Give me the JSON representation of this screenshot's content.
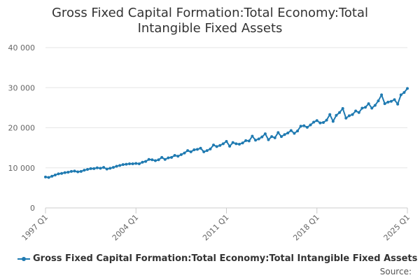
{
  "chart_data": {
    "type": "line",
    "title_lines": [
      "Gross Fixed Capital Formation:Total Economy:Total",
      "Intangible Fixed Assets"
    ],
    "xlabel": "",
    "ylabel": "",
    "ylim": [
      0,
      40000
    ],
    "y_ticks": [
      0,
      10000,
      20000,
      30000,
      40000
    ],
    "y_tick_labels": [
      "0",
      "10 000",
      "20 000",
      "30 000",
      "40 000"
    ],
    "x_tick_labels": [
      "1997 Q1",
      "2004 Q1",
      "2011 Q1",
      "2018 Q1",
      "2025 Q1"
    ],
    "grid": "horizontal",
    "legend_position": "bottom",
    "color": "#1f7ab1",
    "series": [
      {
        "name": "Gross Fixed Capital Formation:Total Economy:Total Intangible Fixed Assets",
        "x": [
          "1997 Q1",
          "1997 Q2",
          "1997 Q3",
          "1997 Q4",
          "1998 Q1",
          "1998 Q2",
          "1998 Q3",
          "1998 Q4",
          "1999 Q1",
          "1999 Q2",
          "1999 Q3",
          "1999 Q4",
          "2000 Q1",
          "2000 Q2",
          "2000 Q3",
          "2000 Q4",
          "2001 Q1",
          "2001 Q2",
          "2001 Q3",
          "2001 Q4",
          "2002 Q1",
          "2002 Q2",
          "2002 Q3",
          "2002 Q4",
          "2003 Q1",
          "2003 Q2",
          "2003 Q3",
          "2003 Q4",
          "2004 Q1",
          "2004 Q2",
          "2004 Q3",
          "2004 Q4",
          "2005 Q1",
          "2005 Q2",
          "2005 Q3",
          "2005 Q4",
          "2006 Q1",
          "2006 Q2",
          "2006 Q3",
          "2006 Q4",
          "2007 Q1",
          "2007 Q2",
          "2007 Q3",
          "2007 Q4",
          "2008 Q1",
          "2008 Q2",
          "2008 Q3",
          "2008 Q4",
          "2009 Q1",
          "2009 Q2",
          "2009 Q3",
          "2009 Q4",
          "2010 Q1",
          "2010 Q2",
          "2010 Q3",
          "2010 Q4",
          "2011 Q1",
          "2011 Q2",
          "2011 Q3",
          "2011 Q4",
          "2012 Q1",
          "2012 Q2",
          "2012 Q3",
          "2012 Q4",
          "2013 Q1",
          "2013 Q2",
          "2013 Q3",
          "2013 Q4",
          "2014 Q1",
          "2014 Q2",
          "2014 Q3",
          "2014 Q4",
          "2015 Q1",
          "2015 Q2",
          "2015 Q3",
          "2015 Q4",
          "2016 Q1",
          "2016 Q2",
          "2016 Q3",
          "2016 Q4",
          "2017 Q1",
          "2017 Q2",
          "2017 Q3",
          "2017 Q4",
          "2018 Q1",
          "2018 Q2",
          "2018 Q3",
          "2018 Q4",
          "2019 Q1",
          "2019 Q2",
          "2019 Q3",
          "2019 Q4",
          "2020 Q1",
          "2020 Q2",
          "2020 Q3",
          "2020 Q4",
          "2021 Q1",
          "2021 Q2",
          "2021 Q3",
          "2021 Q4",
          "2022 Q1",
          "2022 Q2",
          "2022 Q3",
          "2022 Q4",
          "2023 Q1",
          "2023 Q2",
          "2023 Q3",
          "2023 Q4",
          "2024 Q1",
          "2024 Q2",
          "2024 Q3",
          "2024 Q4",
          "2025 Q1"
        ],
        "values": [
          7700,
          7600,
          7900,
          8200,
          8500,
          8600,
          8800,
          8900,
          9100,
          9200,
          9000,
          9100,
          9400,
          9600,
          9800,
          9800,
          10000,
          9900,
          10100,
          9700,
          9900,
          10100,
          10400,
          10600,
          10800,
          10900,
          11000,
          11000,
          11100,
          11000,
          11400,
          11600,
          12100,
          12000,
          11800,
          12000,
          12600,
          12100,
          12500,
          12600,
          13100,
          12900,
          13300,
          13700,
          14300,
          14000,
          14500,
          14600,
          14900,
          14000,
          14300,
          14700,
          15700,
          15300,
          15600,
          16000,
          16600,
          15400,
          16300,
          16000,
          15900,
          16200,
          16800,
          16700,
          17900,
          16900,
          17200,
          17700,
          18500,
          17000,
          17800,
          17500,
          18800,
          17800,
          18300,
          18700,
          19300,
          18600,
          19200,
          20400,
          20500,
          20100,
          20700,
          21400,
          21800,
          21200,
          21300,
          21900,
          23300,
          21600,
          23100,
          23800,
          24800,
          22400,
          23000,
          23300,
          24200,
          23800,
          24900,
          25100,
          26000,
          24900,
          25600,
          26700,
          28200,
          26000,
          26400,
          26600,
          27000,
          25900,
          28200,
          28800,
          29800
        ]
      }
    ]
  },
  "legend": {
    "label": "Gross Fixed Capital Formation:Total Economy:Total Intangible Fixed Assets"
  },
  "footer": {
    "source_label": "Source:"
  }
}
